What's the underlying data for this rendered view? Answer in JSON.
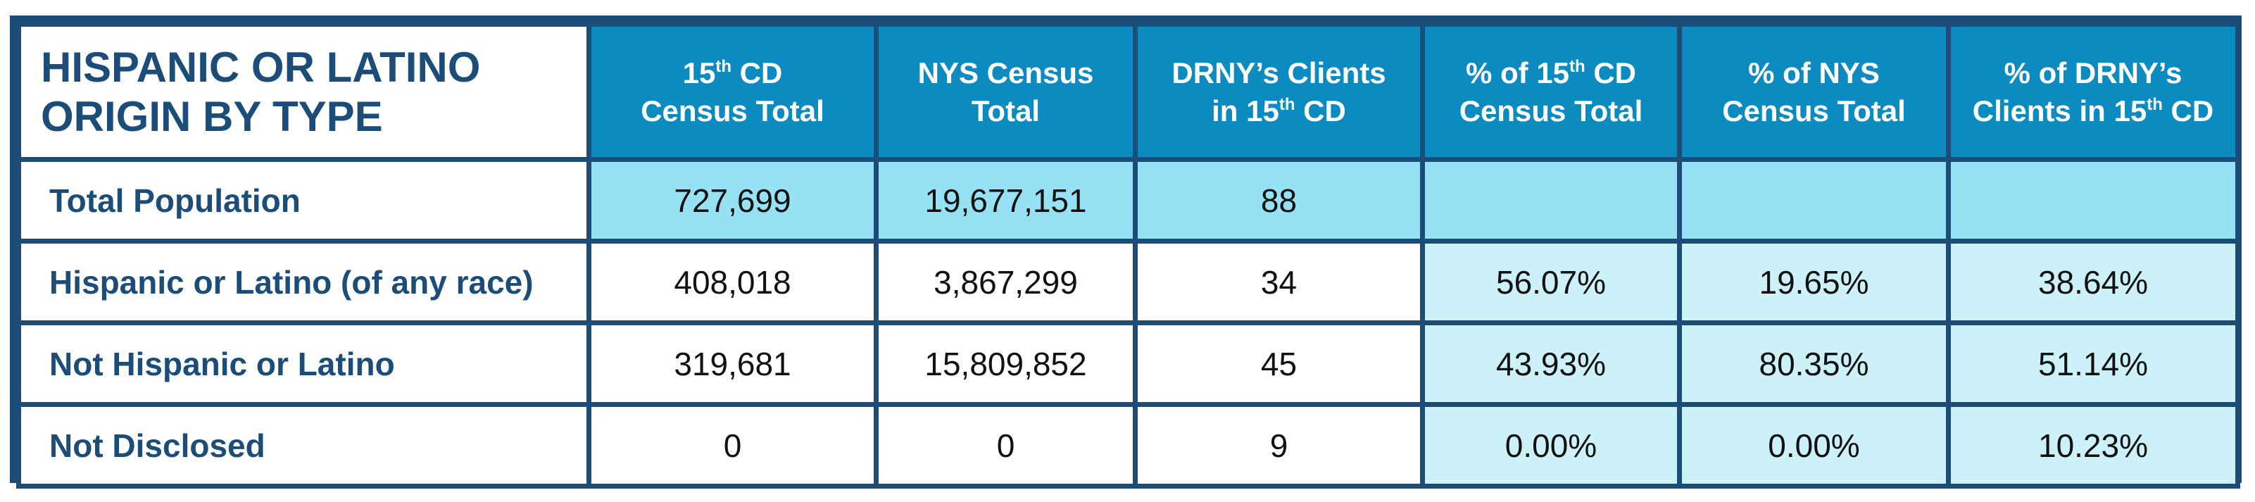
{
  "table": {
    "corner_title_line1": "HISPANIC OR LATINO",
    "corner_title_line2": "ORIGIN BY TYPE",
    "headers": [
      {
        "pre1": "15",
        "sup1": "th",
        "post1": " CD",
        "line2_pre": "Census Total",
        "line2_sup": "",
        "line2_post": ""
      },
      {
        "pre1": "NYS Census",
        "sup1": "",
        "post1": "",
        "line2_pre": "Total",
        "line2_sup": "",
        "line2_post": ""
      },
      {
        "pre1": "DRNY’s Clients",
        "sup1": "",
        "post1": "",
        "line2_pre": "in 15",
        "line2_sup": "th",
        "line2_post": " CD"
      },
      {
        "pre1": "% of 15",
        "sup1": "th",
        "post1": " CD",
        "line2_pre": "Census Total",
        "line2_sup": "",
        "line2_post": ""
      },
      {
        "pre1": "% of NYS",
        "sup1": "",
        "post1": "",
        "line2_pre": "Census Total",
        "line2_sup": "",
        "line2_post": ""
      },
      {
        "pre1": "% of DRNY’s",
        "sup1": "",
        "post1": "",
        "line2_pre": "Clients in 15",
        "line2_sup": "th",
        "line2_post": " CD"
      }
    ],
    "rows": [
      {
        "label": "Total Population",
        "cells": [
          "727,699",
          "19,677,151",
          "88",
          "",
          "",
          ""
        ]
      },
      {
        "label": "Hispanic or Latino (of any race)",
        "cells": [
          "408,018",
          "3,867,299",
          "34",
          "56.07%",
          "19.65%",
          "38.64%"
        ]
      },
      {
        "label": "Not Hispanic or Latino",
        "cells": [
          "319,681",
          "15,809,852",
          "45",
          "43.93%",
          "80.35%",
          "51.14%"
        ]
      },
      {
        "label": "Not Disclosed",
        "cells": [
          "0",
          "0",
          "9",
          "0.00%",
          "0.00%",
          "10.23%"
        ]
      }
    ]
  }
}
